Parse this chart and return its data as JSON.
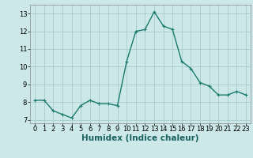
{
  "x": [
    0,
    1,
    2,
    3,
    4,
    5,
    6,
    7,
    8,
    9,
    10,
    11,
    12,
    13,
    14,
    15,
    16,
    17,
    18,
    19,
    20,
    21,
    22,
    23
  ],
  "y": [
    8.1,
    8.1,
    7.5,
    7.3,
    7.1,
    7.8,
    8.1,
    7.9,
    7.9,
    7.8,
    10.3,
    12.0,
    12.1,
    13.1,
    12.3,
    12.1,
    10.3,
    9.9,
    9.1,
    8.9,
    8.4,
    8.4,
    8.6,
    8.4
  ],
  "xlabel": "Humidex (Indice chaleur)",
  "xlim": [
    -0.5,
    23.5
  ],
  "ylim": [
    6.8,
    13.5
  ],
  "yticks": [
    7,
    8,
    9,
    10,
    11,
    12,
    13
  ],
  "xticks": [
    0,
    1,
    2,
    3,
    4,
    5,
    6,
    7,
    8,
    9,
    10,
    11,
    12,
    13,
    14,
    15,
    16,
    17,
    18,
    19,
    20,
    21,
    22,
    23
  ],
  "line_color": "#1a7a6e",
  "marker_size": 2.5,
  "line_width": 1.0,
  "bg_color": "#cce8e8",
  "grid_color": "#aacccc",
  "xlabel_fontsize": 7.5,
  "tick_fontsize": 6.0
}
